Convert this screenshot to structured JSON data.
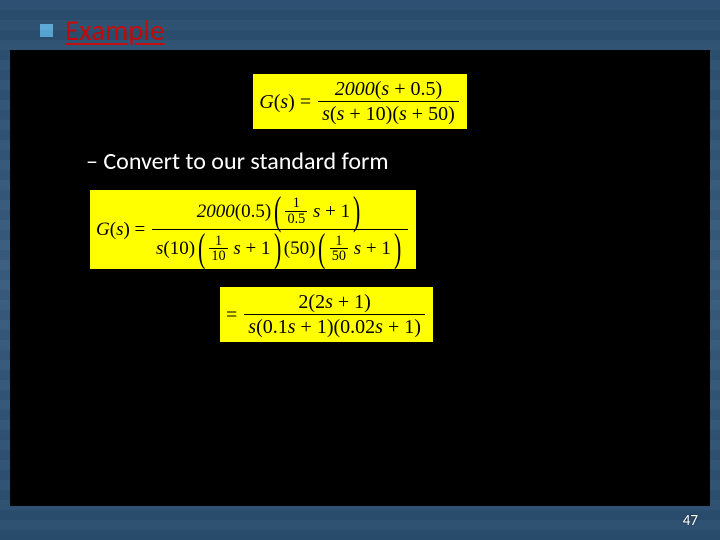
{
  "header": {
    "title": "Example"
  },
  "subtext": "– Convert to our standard form",
  "page_number": "47",
  "equations": {
    "eq1": {
      "lhs": "G(s) =",
      "num_coeff": "2000",
      "num_inner": "s + 0.5",
      "den1": "s",
      "den2": "s + 10",
      "den3": "s + 50"
    },
    "eq2": {
      "lhs": "G(s) =",
      "num_coeff": "2000",
      "num_const": "0.5",
      "num_frac_num": "1",
      "num_frac_den": "0.5",
      "num_tail": "s + 1",
      "den1_a": "s",
      "den1_b": "10",
      "den1_frac_num": "1",
      "den1_frac_den": "10",
      "den1_tail": "s + 1",
      "den2_b": "50",
      "den2_frac_num": "1",
      "den2_frac_den": "50",
      "den2_tail": "s + 1"
    },
    "eq3": {
      "lhs": "=",
      "num_coeff": "2",
      "num_inner": "2s + 1",
      "den1": "s",
      "den2": "0.1s + 1",
      "den3": "0.02s + 1"
    }
  },
  "style": {
    "highlight_bg": "#ffff00",
    "title_color": "#c40a0a",
    "bullet_color": "#5aa8d6",
    "blackbox_bg": "#000000",
    "text_color": "#ffffff"
  }
}
